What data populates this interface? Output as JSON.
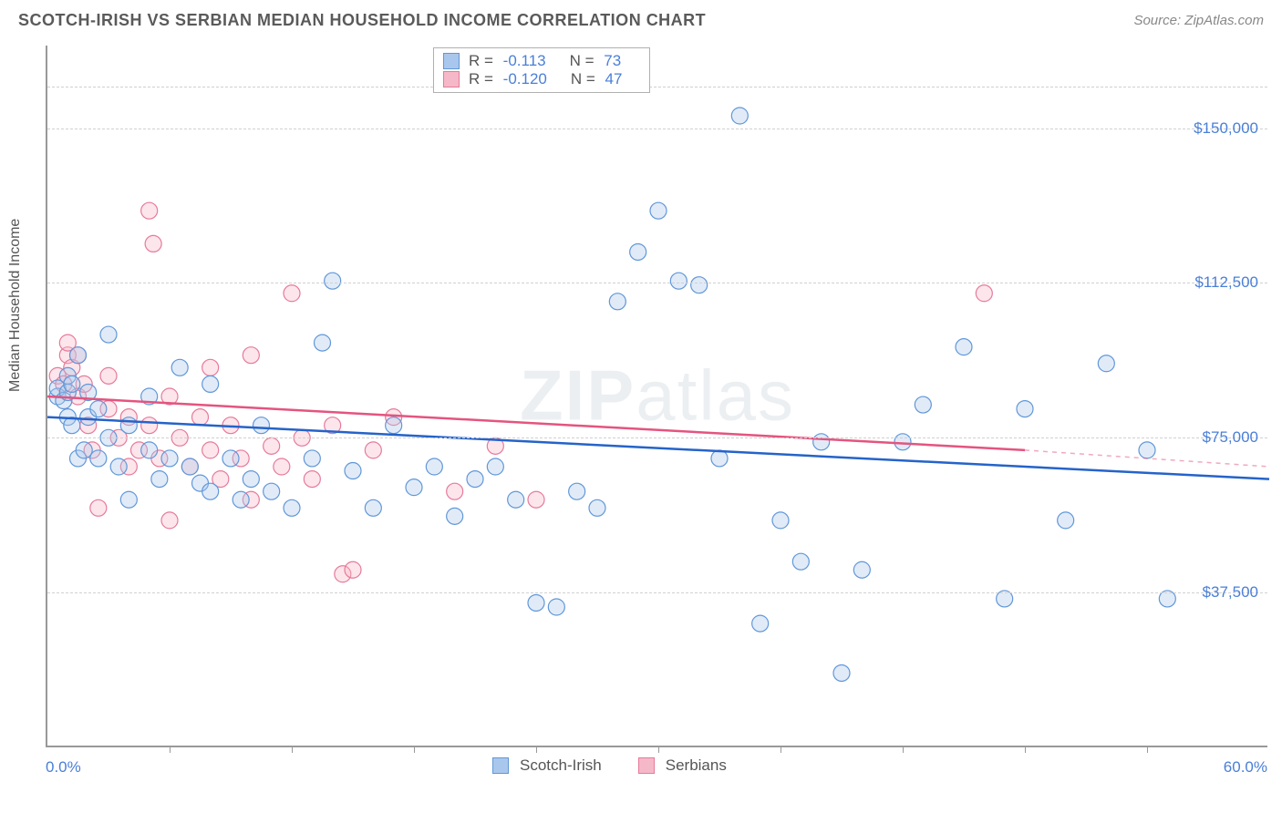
{
  "title": "SCOTCH-IRISH VS SERBIAN MEDIAN HOUSEHOLD INCOME CORRELATION CHART",
  "source_label": "Source: ZipAtlas.com",
  "ylabel": "Median Household Income",
  "watermark": {
    "bold": "ZIP",
    "light": "atlas"
  },
  "chart": {
    "type": "scatter",
    "xlim": [
      0.0,
      60.0
    ],
    "ylim": [
      0,
      170000
    ],
    "x_tick_positions": [
      6,
      12,
      18,
      24,
      30,
      36,
      42,
      48,
      54
    ],
    "y_ticks": [
      37500,
      75000,
      112500,
      150000
    ],
    "y_tick_labels": [
      "$37,500",
      "$75,000",
      "$112,500",
      "$150,000"
    ],
    "x_min_label": "0.0%",
    "x_max_label": "60.0%",
    "grid_color": "#d0d0d0",
    "background": "#ffffff",
    "axis_color": "#999999",
    "label_color": "#4a7fd8",
    "marker_radius": 9,
    "marker_stroke_width": 1.2,
    "marker_fill_opacity": 0.35,
    "line_width": 2.5
  },
  "series": [
    {
      "name": "Scotch-Irish",
      "color_fill": "#a9c7ec",
      "color_stroke": "#6097d8",
      "line_color": "#2563c9",
      "R": "-0.113",
      "N": "73",
      "regression": {
        "x1": 0,
        "y1": 80000,
        "x2": 60,
        "y2": 65000,
        "dashed_from": null
      },
      "points": [
        [
          0.5,
          85000
        ],
        [
          0.5,
          87000
        ],
        [
          0.8,
          84000
        ],
        [
          1.0,
          86000
        ],
        [
          1.0,
          80000
        ],
        [
          1.0,
          90000
        ],
        [
          1.2,
          78000
        ],
        [
          1.2,
          88000
        ],
        [
          1.5,
          70000
        ],
        [
          1.5,
          95000
        ],
        [
          1.8,
          72000
        ],
        [
          2.0,
          86000
        ],
        [
          2.0,
          80000
        ],
        [
          2.5,
          70000
        ],
        [
          3.0,
          75000
        ],
        [
          3.0,
          100000
        ],
        [
          3.5,
          68000
        ],
        [
          4.0,
          78000
        ],
        [
          4.0,
          60000
        ],
        [
          5.0,
          85000
        ],
        [
          5.0,
          72000
        ],
        [
          5.5,
          65000
        ],
        [
          6.0,
          70000
        ],
        [
          6.5,
          92000
        ],
        [
          7.0,
          68000
        ],
        [
          7.5,
          64000
        ],
        [
          8.0,
          88000
        ],
        [
          8.0,
          62000
        ],
        [
          9.0,
          70000
        ],
        [
          9.5,
          60000
        ],
        [
          10.0,
          65000
        ],
        [
          10.5,
          78000
        ],
        [
          11.0,
          62000
        ],
        [
          12.0,
          58000
        ],
        [
          13.0,
          70000
        ],
        [
          13.5,
          98000
        ],
        [
          14.0,
          113000
        ],
        [
          15.0,
          67000
        ],
        [
          16.0,
          58000
        ],
        [
          17.0,
          78000
        ],
        [
          18.0,
          63000
        ],
        [
          19.0,
          68000
        ],
        [
          20.0,
          56000
        ],
        [
          21.0,
          65000
        ],
        [
          22.0,
          68000
        ],
        [
          23.0,
          60000
        ],
        [
          24.0,
          35000
        ],
        [
          25.0,
          34000
        ],
        [
          26.0,
          62000
        ],
        [
          27.0,
          58000
        ],
        [
          28.0,
          108000
        ],
        [
          29.0,
          120000
        ],
        [
          30.0,
          130000
        ],
        [
          31.0,
          113000
        ],
        [
          32.0,
          112000
        ],
        [
          33.0,
          70000
        ],
        [
          34.0,
          153000
        ],
        [
          35.0,
          30000
        ],
        [
          36.0,
          55000
        ],
        [
          37.0,
          45000
        ],
        [
          38.0,
          74000
        ],
        [
          39.0,
          18000
        ],
        [
          40.0,
          43000
        ],
        [
          42.0,
          74000
        ],
        [
          43.0,
          83000
        ],
        [
          45.0,
          97000
        ],
        [
          47.0,
          36000
        ],
        [
          48.0,
          82000
        ],
        [
          50.0,
          55000
        ],
        [
          52.0,
          93000
        ],
        [
          54.0,
          72000
        ],
        [
          55.0,
          36000
        ],
        [
          2.5,
          82000
        ]
      ]
    },
    {
      "name": "Serbians",
      "color_fill": "#f5b8c8",
      "color_stroke": "#e67a9a",
      "line_color": "#e4547f",
      "R": "-0.120",
      "N": "47",
      "regression": {
        "x1": 0,
        "y1": 85000,
        "x2": 48,
        "y2": 72000,
        "dashed_from": 48,
        "x2d": 60,
        "y2d": 68000
      },
      "points": [
        [
          0.5,
          90000
        ],
        [
          0.8,
          88000
        ],
        [
          1.0,
          95000
        ],
        [
          1.0,
          98000
        ],
        [
          1.2,
          92000
        ],
        [
          1.5,
          85000
        ],
        [
          1.5,
          95000
        ],
        [
          1.8,
          88000
        ],
        [
          2.0,
          78000
        ],
        [
          2.2,
          72000
        ],
        [
          2.5,
          58000
        ],
        [
          3.0,
          82000
        ],
        [
          3.0,
          90000
        ],
        [
          3.5,
          75000
        ],
        [
          4.0,
          68000
        ],
        [
          4.0,
          80000
        ],
        [
          4.5,
          72000
        ],
        [
          5.0,
          130000
        ],
        [
          5.0,
          78000
        ],
        [
          5.2,
          122000
        ],
        [
          5.5,
          70000
        ],
        [
          6.0,
          85000
        ],
        [
          6.0,
          55000
        ],
        [
          6.5,
          75000
        ],
        [
          7.0,
          68000
        ],
        [
          7.5,
          80000
        ],
        [
          8.0,
          92000
        ],
        [
          8.0,
          72000
        ],
        [
          8.5,
          65000
        ],
        [
          9.0,
          78000
        ],
        [
          9.5,
          70000
        ],
        [
          10.0,
          95000
        ],
        [
          10.0,
          60000
        ],
        [
          11.0,
          73000
        ],
        [
          11.5,
          68000
        ],
        [
          12.0,
          110000
        ],
        [
          12.5,
          75000
        ],
        [
          13.0,
          65000
        ],
        [
          14.0,
          78000
        ],
        [
          14.5,
          42000
        ],
        [
          15.0,
          43000
        ],
        [
          16.0,
          72000
        ],
        [
          17.0,
          80000
        ],
        [
          20.0,
          62000
        ],
        [
          22.0,
          73000
        ],
        [
          24.0,
          60000
        ],
        [
          46.0,
          110000
        ]
      ]
    }
  ],
  "legend": {
    "series1_label": "Scotch-Irish",
    "series2_label": "Serbians"
  }
}
